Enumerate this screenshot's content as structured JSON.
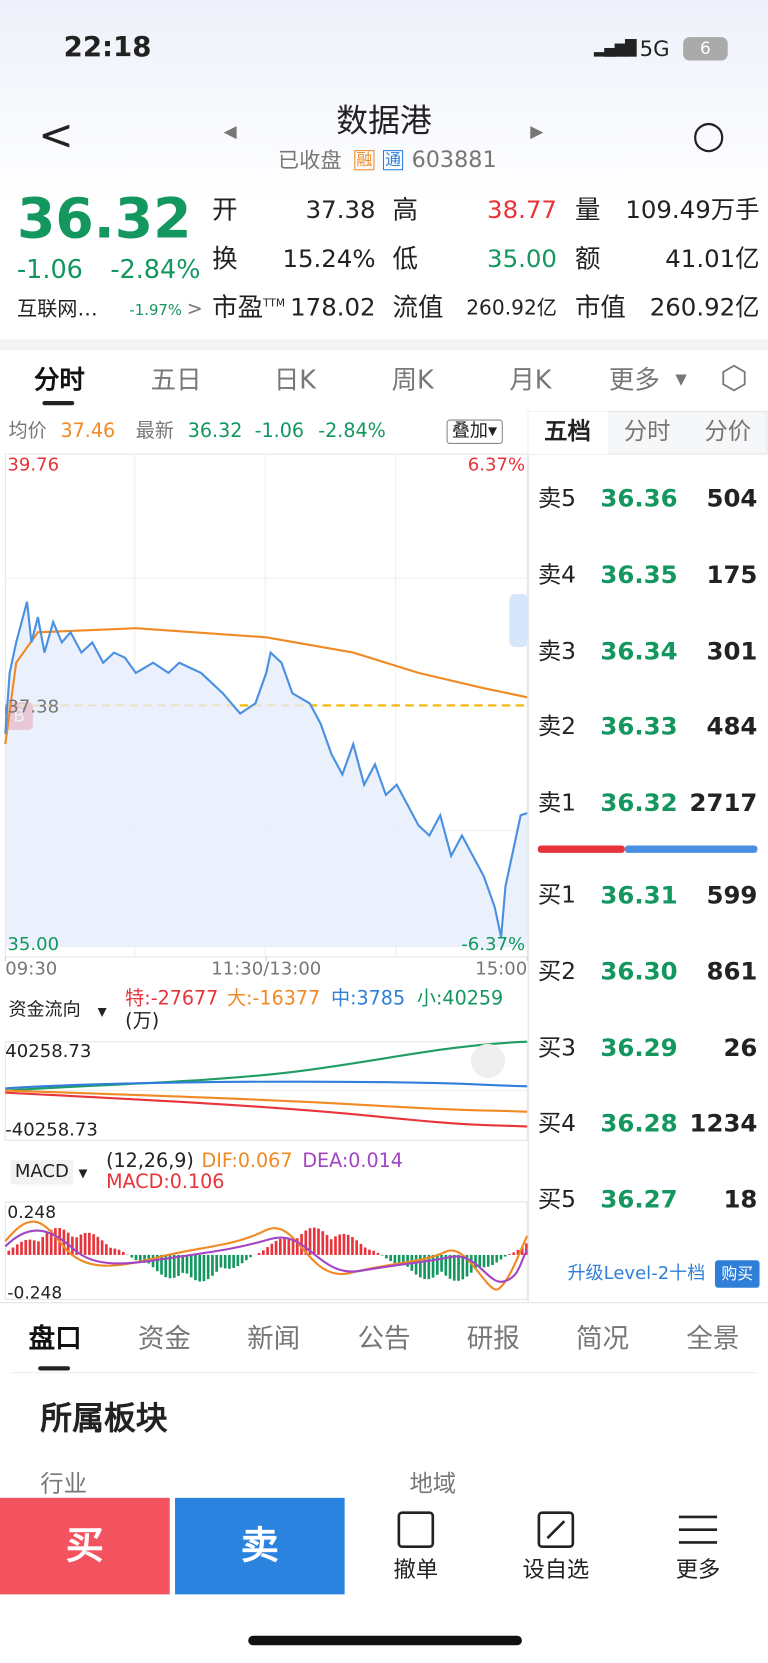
{
  "status_bar": {
    "time": "22:18",
    "network": "5G",
    "battery": "6"
  },
  "header": {
    "title": "数据港",
    "status": "已收盘",
    "tag_margin": "融",
    "tag_connect": "通",
    "code": "603881"
  },
  "quote": {
    "price": "36.32",
    "change": "-1.06",
    "change_pct": "-2.84%",
    "sector": "互联网…",
    "sector_change": "-1.97%",
    "stats": [
      {
        "label": "开",
        "value": "37.38"
      },
      {
        "label": "高",
        "value": "38.77"
      },
      {
        "label": "量",
        "value": "109.49万手"
      },
      {
        "label": "换",
        "value": "15.24%"
      },
      {
        "label": "低",
        "value": "35.00"
      },
      {
        "label": "额",
        "value": "41.01亿"
      },
      {
        "label": "市盈",
        "sup": "TTM",
        "value": "178.02"
      },
      {
        "label": "流值",
        "value": "260.92亿"
      },
      {
        "label": "市值",
        "value": "260.92亿"
      }
    ]
  },
  "tabs": [
    "分时",
    "五日",
    "日K",
    "周K",
    "月K",
    "更多"
  ],
  "chart_data": {
    "type": "line",
    "summary": {
      "avg_label": "均价",
      "avg": "37.46",
      "latest_label": "最新",
      "latest": "36.32",
      "change": "-1.06",
      "change_pct": "-2.84%"
    },
    "overlay_button": "叠加",
    "pct_top": "6.37%",
    "pct_bottom": "-6.37%",
    "xlim": [
      0,
      240
    ],
    "xticks": [
      {
        "value": 0,
        "label": "09:30"
      },
      {
        "value": 120,
        "label": "11:30/13:00"
      },
      {
        "value": 240,
        "label": "15:00"
      }
    ],
    "ylim": [
      35,
      39.76
    ],
    "yticks": [
      {
        "value": 35,
        "label": "35.00"
      },
      {
        "value": 37.38,
        "label": "37.38"
      },
      {
        "value": 39.76,
        "label": "39.76"
      }
    ],
    "series": [
      {
        "name": "均价",
        "color": "#f08a24",
        "x": [
          0,
          5,
          15,
          60,
          120,
          160,
          190,
          220,
          240
        ],
        "values": [
          37.0,
          37.8,
          38.1,
          38.14,
          38.05,
          37.9,
          37.7,
          37.55,
          37.46
        ]
      },
      {
        "name": "最新",
        "color": "#4a90e2",
        "x": [
          0,
          2,
          5,
          10,
          12,
          15,
          18,
          22,
          26,
          30,
          35,
          40,
          45,
          50,
          55,
          60,
          68,
          75,
          80,
          90,
          100,
          108,
          115,
          120,
          122,
          127,
          132,
          140,
          145,
          150,
          155,
          160,
          165,
          170,
          175,
          180,
          185,
          190,
          195,
          200,
          205,
          210,
          215,
          220,
          225,
          228,
          230,
          235,
          237,
          240
        ],
        "values": [
          37.1,
          37.7,
          38.0,
          38.4,
          38.0,
          38.25,
          37.9,
          38.2,
          38.0,
          38.1,
          37.9,
          38.0,
          37.8,
          37.9,
          37.85,
          37.7,
          37.8,
          37.7,
          37.8,
          37.7,
          37.5,
          37.3,
          37.4,
          37.7,
          37.9,
          37.8,
          37.5,
          37.4,
          37.2,
          36.9,
          36.7,
          37.0,
          36.6,
          36.8,
          36.5,
          36.6,
          36.4,
          36.2,
          36.1,
          36.3,
          35.9,
          36.1,
          35.9,
          35.7,
          35.4,
          35.1,
          35.6,
          36.1,
          36.3,
          36.32
        ]
      }
    ]
  },
  "fund_flow": {
    "label": "资金流向",
    "super": "特:-27677",
    "big": "大:-16377",
    "mid": "中:3785",
    "small": "小:40259",
    "unit": "(万)",
    "top": "40258.73",
    "bottom": "-40258.73"
  },
  "macd": {
    "label": "MACD",
    "params": "(12,26,9)",
    "dif": "DIF:0.067",
    "dea": "DEA:0.014",
    "macd": "MACD:0.106",
    "top": "0.248",
    "bottom": "-0.248"
  },
  "order_book": {
    "tabs": [
      "五档",
      "分时",
      "分价"
    ],
    "asks": [
      {
        "label": "卖5",
        "price": "36.36",
        "volume": "504"
      },
      {
        "label": "卖4",
        "price": "36.35",
        "volume": "175"
      },
      {
        "label": "卖3",
        "price": "36.34",
        "volume": "301"
      },
      {
        "label": "卖2",
        "price": "36.33",
        "volume": "484"
      },
      {
        "label": "卖1",
        "price": "36.32",
        "volume": "2717"
      }
    ],
    "bids": [
      {
        "label": "买1",
        "price": "36.31",
        "volume": "599"
      },
      {
        "label": "买2",
        "price": "36.30",
        "volume": "861"
      },
      {
        "label": "买3",
        "price": "36.29",
        "volume": "26"
      },
      {
        "label": "买4",
        "price": "36.28",
        "volume": "1234"
      },
      {
        "label": "买5",
        "price": "36.27",
        "volume": "18"
      }
    ],
    "upgrade": "升级Level-2十档",
    "buy": "购买"
  },
  "bottom_tabs": [
    "盘口",
    "资金",
    "新闻",
    "公告",
    "研报",
    "简况",
    "全景"
  ],
  "section": {
    "title": "所属板块",
    "industry": "行业",
    "region": "地域"
  },
  "actions": {
    "buy": "买",
    "sell": "卖",
    "cancel": "撤单",
    "watch": "设自选",
    "more": "更多"
  }
}
